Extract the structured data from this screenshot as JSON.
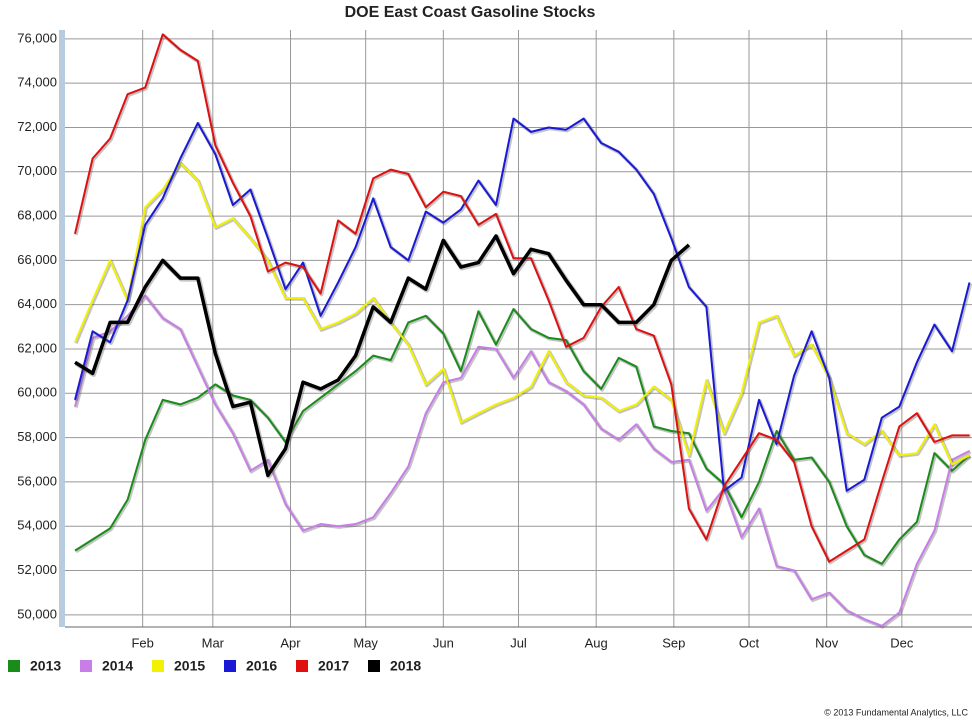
{
  "chart_data": {
    "type": "line",
    "title": "DOE East Coast Gasoline Stocks",
    "x": [
      4,
      11,
      18,
      25,
      32,
      39,
      46,
      53,
      60,
      67,
      74,
      81,
      88,
      95,
      102,
      109,
      116,
      123,
      130,
      137,
      144,
      151,
      158,
      165,
      172,
      179,
      186,
      193,
      200,
      207,
      214,
      221,
      228,
      235,
      242,
      249,
      256,
      263,
      270,
      277,
      284,
      291,
      298,
      305,
      312,
      319,
      326,
      333,
      340,
      347,
      354,
      361
    ],
    "xlim": [
      0,
      362
    ],
    "xticks": [
      {
        "value": 31,
        "label": "Feb"
      },
      {
        "value": 59,
        "label": "Mar"
      },
      {
        "value": 90,
        "label": "Apr"
      },
      {
        "value": 120,
        "label": "May"
      },
      {
        "value": 151,
        "label": "Jun"
      },
      {
        "value": 181,
        "label": "Jul"
      },
      {
        "value": 212,
        "label": "Aug"
      },
      {
        "value": 243,
        "label": "Sep"
      },
      {
        "value": 273,
        "label": "Oct"
      },
      {
        "value": 304,
        "label": "Nov"
      },
      {
        "value": 334,
        "label": "Dec"
      }
    ],
    "ylim": [
      49450,
      76400
    ],
    "yticks": [
      {
        "value": 50000,
        "label": "50,000"
      },
      {
        "value": 52000,
        "label": "52,000"
      },
      {
        "value": 54000,
        "label": "54,000"
      },
      {
        "value": 56000,
        "label": "56,000"
      },
      {
        "value": 58000,
        "label": "58,000"
      },
      {
        "value": 60000,
        "label": "60,000"
      },
      {
        "value": 62000,
        "label": "62,000"
      },
      {
        "value": 64000,
        "label": "64,000"
      },
      {
        "value": 66000,
        "label": "66,000"
      },
      {
        "value": 68000,
        "label": "68,000"
      },
      {
        "value": 70000,
        "label": "70,000"
      },
      {
        "value": 72000,
        "label": "72,000"
      },
      {
        "value": 74000,
        "label": "74,000"
      },
      {
        "value": 76000,
        "label": "76,000"
      }
    ],
    "grid": true,
    "legend": "bottom",
    "series": [
      {
        "name": "2013",
        "color": "#1a8c1a",
        "values": [
          52900,
          53400,
          53900,
          55200,
          57900,
          59700,
          59500,
          59800,
          60400,
          59900,
          59700,
          58900,
          57800,
          59200,
          59800,
          60400,
          61000,
          61700,
          61500,
          63200,
          63500,
          62700,
          61000,
          63700,
          62200,
          63800,
          62900,
          62500,
          62400,
          61000,
          60200,
          61600,
          61200,
          58500,
          58300,
          58200,
          56600,
          55900,
          54400,
          56000,
          58300,
          57000,
          57100,
          56000,
          54000,
          52700,
          52300,
          53400,
          54200,
          57300,
          56500,
          57200
        ]
      },
      {
        "name": "2014",
        "color": "#c77ee8",
        "values": [
          59400,
          62500,
          62800,
          63500,
          64400,
          63400,
          62900,
          61200,
          59500,
          58200,
          56500,
          57000,
          55000,
          53800,
          54100,
          54000,
          54100,
          54400,
          55500,
          56700,
          59100,
          60500,
          60700,
          62100,
          62000,
          60700,
          61900,
          60500,
          60100,
          59500,
          58400,
          57900,
          58600,
          57500,
          56900,
          57000,
          54700,
          55700,
          53500,
          54800,
          52200,
          52000,
          50700,
          51000,
          50200,
          49800,
          49500,
          50100,
          52300,
          53800,
          57000,
          57400
        ]
      },
      {
        "name": "2015",
        "color": "#f2f200",
        "values": [
          62300,
          64200,
          66000,
          64200,
          68400,
          69200,
          70400,
          69600,
          67500,
          67900,
          67000,
          66000,
          64300,
          64300,
          62900,
          63200,
          63600,
          64300,
          63200,
          62200,
          60400,
          61100,
          58700,
          59100,
          59500,
          59800,
          60300,
          61900,
          60500,
          59900,
          59800,
          59200,
          59500,
          60300,
          59700,
          57200,
          60600,
          58200,
          60000,
          63200,
          63500,
          61700,
          62200,
          60700,
          58200,
          57700,
          58300,
          57200,
          57300,
          58600,
          56800,
          57200
        ]
      },
      {
        "name": "2016",
        "color": "#1a1ad6",
        "values": [
          59700,
          62800,
          62300,
          64200,
          67600,
          68800,
          70600,
          72200,
          70800,
          68500,
          69200,
          67000,
          64700,
          65900,
          63500,
          65000,
          66600,
          68800,
          66600,
          66000,
          68200,
          67700,
          68300,
          69600,
          68500,
          72400,
          71800,
          72000,
          71900,
          72400,
          71300,
          70900,
          70100,
          69000,
          67000,
          64800,
          63900,
          55600,
          56200,
          59700,
          57700,
          60800,
          62800,
          60700,
          55600,
          56100,
          58900,
          59400,
          61400,
          63100,
          61900,
          65000
        ]
      },
      {
        "name": "2017",
        "color": "#e01010",
        "values": [
          67200,
          70600,
          71500,
          73500,
          73800,
          76200,
          75500,
          75000,
          71200,
          69500,
          68000,
          65500,
          65900,
          65700,
          64500,
          67800,
          67200,
          69700,
          70100,
          69900,
          68400,
          69100,
          68900,
          67600,
          68100,
          66100,
          66100,
          64200,
          62100,
          62500,
          63900,
          64800,
          62900,
          62600,
          60400,
          54800,
          53400,
          55800,
          57000,
          58200,
          57900,
          56900,
          54000,
          52400,
          52900,
          53400,
          56000,
          58500,
          59100,
          57800,
          58100,
          58100
        ]
      },
      {
        "name": "2018",
        "color": "#000000",
        "values": [
          61400,
          60900,
          63200,
          63200,
          64800,
          66000,
          65200,
          65200,
          61800,
          59400,
          59600,
          56300,
          57500,
          60500,
          60200,
          60600,
          61700,
          63900,
          63200,
          65200,
          64700,
          66900,
          65700,
          65900,
          67100,
          65400,
          66500,
          66300,
          65100,
          64000,
          64000,
          63200,
          63200,
          64000,
          66000,
          66700,
          null,
          null,
          null,
          null,
          null,
          null,
          null,
          null,
          null,
          null,
          null,
          null,
          null,
          null,
          null,
          null
        ]
      }
    ],
    "footnote": "© 2013 Fundamental Analytics, LLC"
  }
}
